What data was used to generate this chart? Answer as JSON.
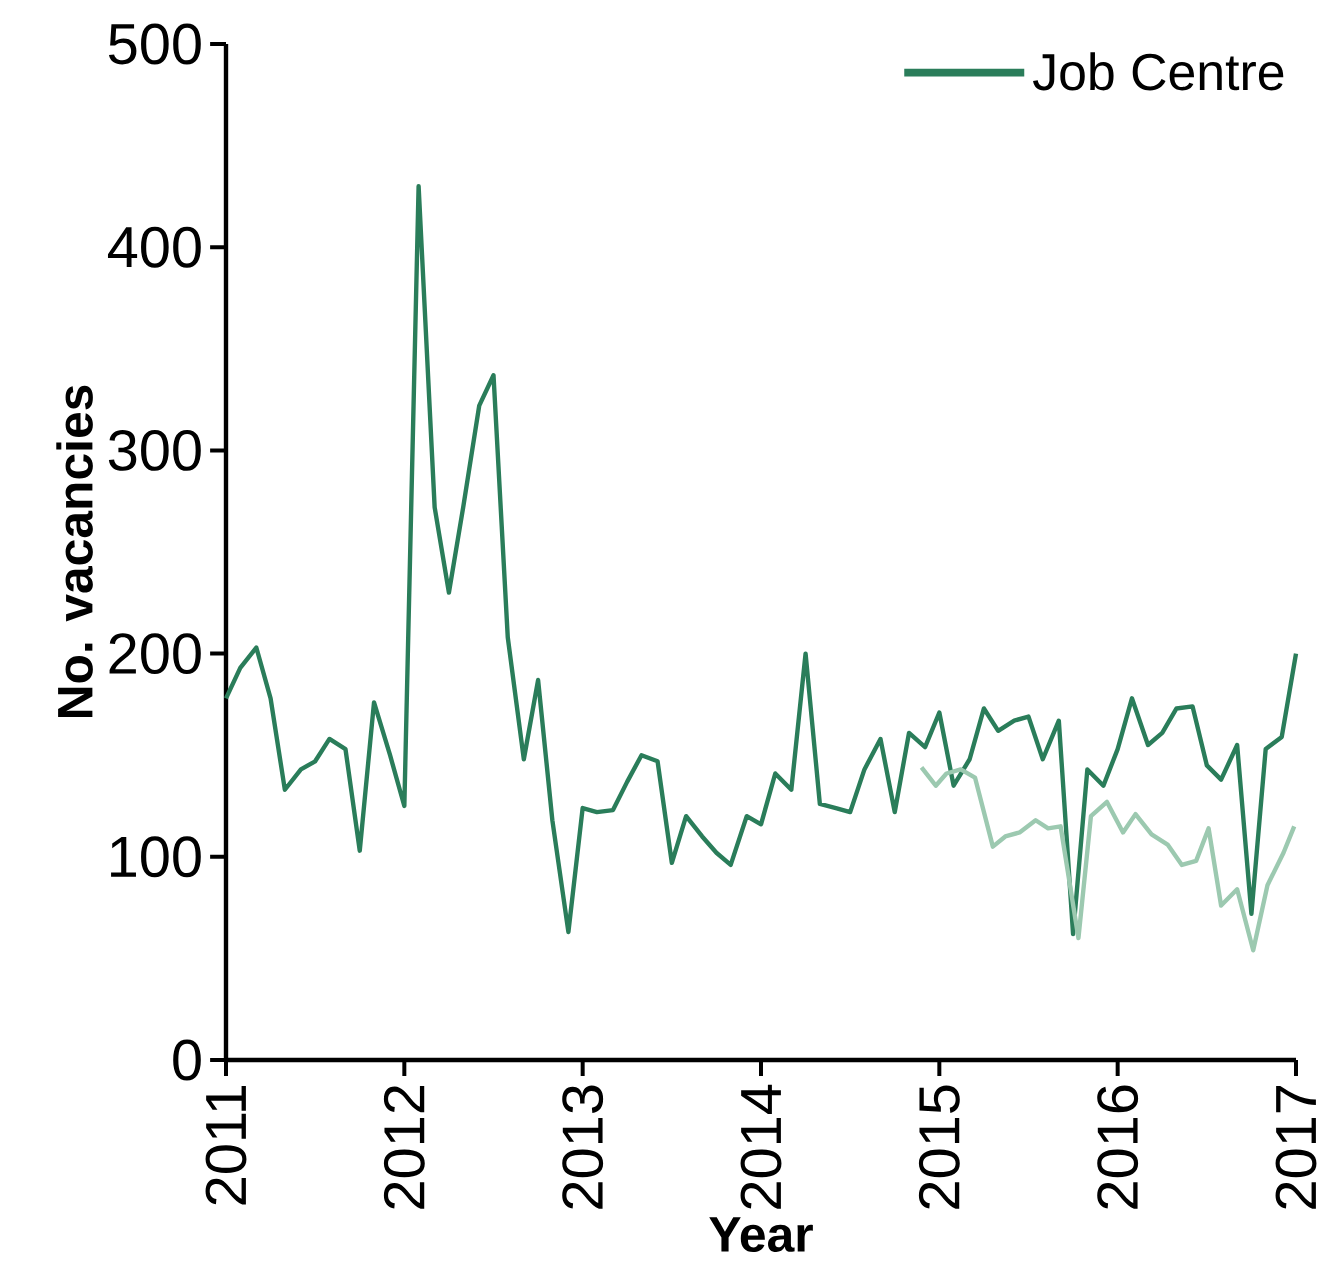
{
  "chart_data": {
    "type": "line",
    "xlabel": "Year",
    "ylabel": "No. vacancies",
    "xlim": [
      2011,
      2017
    ],
    "xticks": [
      2011,
      2012,
      2013,
      2014,
      2015,
      2016,
      2017
    ],
    "ylim": [
      0,
      500
    ],
    "yticks": [
      0,
      100,
      200,
      300,
      400,
      500
    ],
    "grid": false,
    "legend": "top right",
    "marker": "none",
    "line_style": "solid",
    "series": [
      {
        "name": "Job Centre",
        "color": "#2a7d5a",
        "x": [
          2011.0,
          2011.08,
          2011.17,
          2011.25,
          2011.33,
          2011.42,
          2011.5,
          2011.58,
          2011.67,
          2011.75,
          2011.83,
          2011.92,
          2012.0,
          2012.08,
          2012.17,
          2012.25,
          2012.33,
          2012.42,
          2012.5,
          2012.58,
          2012.67,
          2012.75,
          2012.83,
          2012.92,
          2013.0,
          2013.08,
          2013.17,
          2013.25,
          2013.33,
          2013.42,
          2013.5,
          2013.58,
          2013.67,
          2013.75,
          2013.83,
          2013.92,
          2014.0,
          2014.08,
          2014.17,
          2014.25,
          2014.33,
          2014.42,
          2014.5,
          2014.58,
          2014.67,
          2014.75,
          2014.83,
          2014.92,
          2015.0,
          2015.08,
          2015.17,
          2015.25,
          2015.33,
          2015.42,
          2015.5,
          2015.58,
          2015.67,
          2015.75,
          2015.83,
          2015.92,
          2016.0,
          2016.08,
          2016.17,
          2016.25,
          2016.33,
          2016.42,
          2016.5,
          2016.58,
          2016.67,
          2016.75,
          2016.83,
          2016.92,
          2017.0
        ],
        "values": [
          178,
          193,
          203,
          178,
          133,
          143,
          147,
          158,
          153,
          103,
          176,
          150,
          125,
          430,
          272,
          230,
          272,
          322,
          337,
          208,
          148,
          187,
          118,
          63,
          124,
          122,
          123,
          137,
          150,
          147,
          97,
          120,
          110,
          102,
          96,
          120,
          116,
          141,
          133,
          200,
          126,
          124,
          122,
          143,
          158,
          122,
          161,
          154,
          171,
          135,
          148,
          173,
          162,
          167,
          169,
          148,
          167,
          62,
          143,
          135,
          153,
          178,
          155,
          161,
          173,
          174,
          145,
          138,
          155,
          72,
          153,
          159,
          200
        ]
      },
      {
        "color": "#9cc9b0",
        "x": [
          2014.9,
          2014.98,
          2015.04,
          2015.12,
          2015.2,
          2015.3,
          2015.37,
          2015.45,
          2015.54,
          2015.61,
          2015.68,
          2015.78,
          2015.85,
          2015.94,
          2016.03,
          2016.1,
          2016.19,
          2016.28,
          2016.36,
          2016.44,
          2016.51,
          2016.58,
          2016.67,
          2016.76,
          2016.84,
          2016.93,
          2016.99
        ],
        "values": [
          144,
          135,
          141,
          143,
          139,
          105,
          110,
          112,
          118,
          114,
          115,
          60,
          120,
          127,
          112,
          121,
          111,
          106,
          96,
          98,
          114,
          76,
          84,
          54,
          86,
          102,
          115
        ]
      }
    ]
  }
}
